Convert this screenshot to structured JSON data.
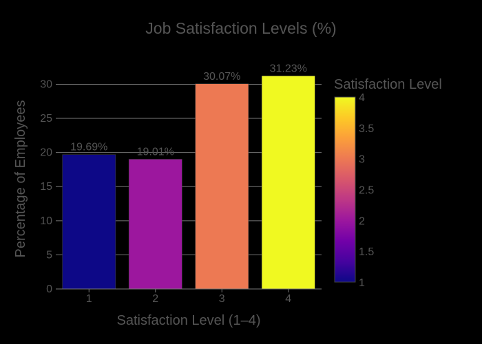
{
  "chart_data": {
    "type": "bar",
    "title": "Job Satisfaction Levels (%)",
    "xlabel": "Satisfaction Level (1–4)",
    "ylabel": "Percentage of Employees",
    "categories": [
      "1",
      "2",
      "3",
      "4"
    ],
    "values": [
      19.69,
      19.01,
      30.07,
      31.23
    ],
    "data_labels": [
      "19.69%",
      "19.01%",
      "30.07%",
      "31.23%"
    ],
    "bar_colors": [
      "#0d0887",
      "#9c179e",
      "#ed7953",
      "#f0f921"
    ],
    "ylim": [
      0,
      32.87
    ],
    "yticks": [
      0,
      5,
      10,
      15,
      20,
      25,
      30
    ],
    "grid": true,
    "background": "#000000",
    "colorbar": {
      "title": "Satisfaction Level",
      "range": [
        1,
        4
      ],
      "ticks": [
        "1",
        "1.5",
        "2",
        "2.5",
        "3",
        "3.5",
        "4"
      ],
      "colorscale": [
        "#0d0887",
        "#46039f",
        "#7201a8",
        "#9c179e",
        "#bd3786",
        "#d8576b",
        "#ed7953",
        "#fb9f3a",
        "#fdca26",
        "#f0f921"
      ]
    }
  }
}
